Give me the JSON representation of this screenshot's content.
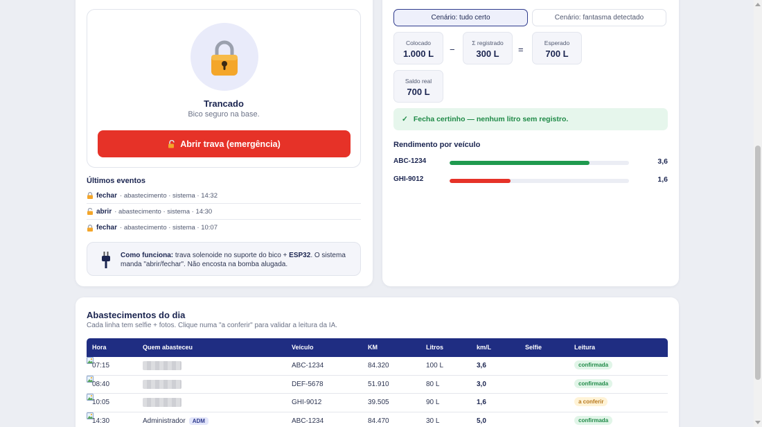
{
  "lock_panel": {
    "status_title": "Trancado",
    "status_sub": "Bico seguro na base.",
    "emergency_button": "Abrir trava (emergência)",
    "events_title": "Últimos eventos",
    "events": [
      {
        "action": "fechar",
        "details": "· abastecimento · sistema · 14:32",
        "icon": "lock-closed-icon"
      },
      {
        "action": "abrir",
        "details": "· abastecimento · sistema · 14:30",
        "icon": "lock-open-icon"
      },
      {
        "action": "fechar",
        "details": "· abastecimento · sistema · 10:07",
        "icon": "lock-closed-icon"
      }
    ],
    "howto": {
      "bold_lead": "Como funciona:",
      "text1": " trava solenoide no suporte do bico + ",
      "bold_esp": "ESP32",
      "text2": ". O sistema manda \"abrir/fechar\". Não encosta na bomba alugada.",
      "icon": "plug-icon"
    }
  },
  "recon_panel": {
    "scenario_ok": "Cenário: tudo certo",
    "scenario_ghost": "Cenário: fantasma detectado",
    "stats": {
      "colocado_label": "Colocado",
      "colocado_value": "1.000 L",
      "registrado_label": "Σ registrado",
      "registrado_value": "300 L",
      "esperado_label": "Esperado",
      "esperado_value": "700 L",
      "saldo_label": "Saldo real",
      "saldo_value": "700 L"
    },
    "op_minus": "−",
    "op_equals": "=",
    "ok_check": "✓",
    "ok_message": "Fecha certinho — nenhum litro sem registro.",
    "yield_title": "Rendimento por veículo",
    "yields": [
      {
        "plate": "ABC-1234",
        "value": "3,6",
        "fraction": 0.78,
        "color": "#1f9a4f"
      },
      {
        "plate": "GHI-9012",
        "value": "1,6",
        "fraction": 0.34,
        "color": "#e63228"
      }
    ]
  },
  "table_panel": {
    "title": "Abastecimentos do dia",
    "subtitle": "Cada linha tem selfie + fotos. Clique numa \"a conferir\" para validar a leitura da IA.",
    "headers": {
      "hora": "Hora",
      "quem": "Quem abasteceu",
      "veiculo": "Veículo",
      "km": "KM",
      "litros": "Litros",
      "kml": "km/L",
      "selfie": "Selfie",
      "leitura": "Leitura"
    },
    "rows": [
      {
        "hora": "07:15",
        "quem": "",
        "veiculo": "ABC-1234",
        "km": "84.320",
        "litros": "100 L",
        "kml": "3,6",
        "leitura": "confirmada",
        "status": "ok"
      },
      {
        "hora": "08:40",
        "quem": "",
        "veiculo": "DEF-5678",
        "km": "51.910",
        "litros": "80 L",
        "kml": "3,0",
        "leitura": "confirmada",
        "status": "ok"
      },
      {
        "hora": "10:05",
        "quem": "",
        "veiculo": "GHI-9012",
        "km": "39.505",
        "litros": "90 L",
        "kml": "1,6",
        "leitura": "a conferir",
        "status": "warn"
      },
      {
        "hora": "14:30",
        "quem": "Administrador",
        "badge": "ADM",
        "veiculo": "ABC-1234",
        "km": "84.470",
        "litros": "30 L",
        "kml": "5,0",
        "leitura": "confirmada",
        "status": "ok"
      }
    ]
  },
  "colors": {
    "navy": "#1f2d82",
    "danger": "#e63228",
    "success": "#1f8a47",
    "warning": "#b7791f"
  }
}
